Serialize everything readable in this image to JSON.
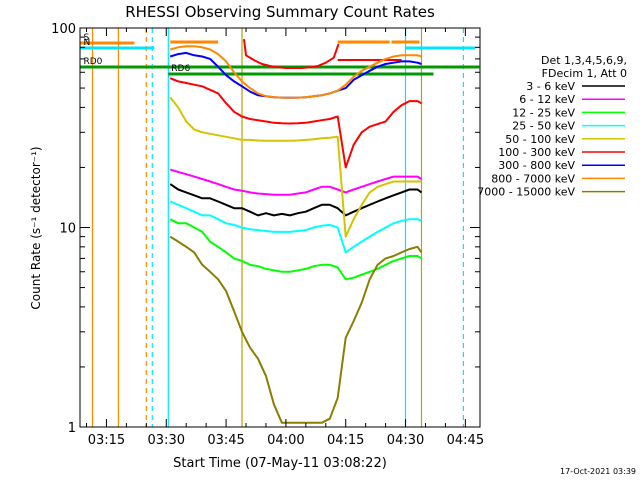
{
  "chart_data": {
    "type": "line",
    "title": "RHESSI Observing Summary Count Rates",
    "xlabel_prefix": "Start Time (",
    "xlabel_date": "07-May-11 03:08:22",
    "xlabel_suffix": ")",
    "ylabel": "Count Rate (s⁻¹ detector⁻¹)",
    "yscale": "log",
    "ylim": [
      1,
      100
    ],
    "y_ticks": [
      {
        "v": 1,
        "label": "1"
      },
      {
        "v": 10,
        "label": "10"
      },
      {
        "v": 100,
        "label": "100"
      }
    ],
    "x_ticks": [
      {
        "min": 195,
        "label": "03:15"
      },
      {
        "min": 210,
        "label": "03:30"
      },
      {
        "min": 225,
        "label": "03:45"
      },
      {
        "min": 240,
        "label": "04:00"
      },
      {
        "min": 255,
        "label": "04:15"
      },
      {
        "min": 270,
        "label": "04:30"
      },
      {
        "min": 285,
        "label": "04:45"
      }
    ],
    "xlim_min": [
      188.37,
      288.67
    ],
    "legend_header": [
      "Det 1,3,4,5,6,9,",
      "FDecim 1, Att 0"
    ],
    "series": [
      {
        "name": "3 - 6 keV",
        "color": "#000000",
        "x": [
          211,
          213,
          215,
          217,
          219,
          221,
          223,
          225,
          227,
          229,
          231,
          233,
          235,
          237,
          239,
          241,
          243,
          245,
          247,
          249,
          251,
          253,
          255,
          257,
          259,
          261,
          263,
          265,
          267,
          269,
          271,
          273,
          274
        ],
        "y": [
          16.5,
          15.5,
          15,
          14.5,
          14,
          14,
          13.5,
          13,
          12.5,
          12.5,
          12,
          11.5,
          11.8,
          11.5,
          11.7,
          11.5,
          11.8,
          12,
          12.5,
          13,
          13,
          12.5,
          11.5,
          12,
          12.5,
          13,
          13.5,
          14,
          14.5,
          15,
          15.5,
          15.5,
          15
        ]
      },
      {
        "name": "6 - 12 keV",
        "color": "#ff00ff",
        "x": [
          211,
          213,
          215,
          217,
          219,
          221,
          223,
          225,
          227,
          229,
          231,
          233,
          235,
          237,
          239,
          241,
          243,
          245,
          247,
          249,
          251,
          253,
          255,
          257,
          259,
          261,
          263,
          265,
          267,
          269,
          271,
          273,
          274
        ],
        "y": [
          19.5,
          19,
          18.5,
          18,
          17.5,
          17,
          16.5,
          16,
          15.5,
          15.3,
          15,
          14.8,
          14.7,
          14.6,
          14.6,
          14.6,
          14.8,
          15,
          15.5,
          16,
          16,
          15.5,
          15,
          15.5,
          16,
          16.5,
          17,
          17.5,
          18,
          18,
          18,
          18,
          17.5
        ]
      },
      {
        "name": "12 - 25 keV",
        "color": "#00ff00",
        "x": [
          211,
          213,
          215,
          217,
          219,
          221,
          223,
          225,
          227,
          229,
          231,
          233,
          235,
          237,
          239,
          241,
          243,
          245,
          247,
          249,
          251,
          253,
          255,
          257,
          259,
          261,
          263,
          265,
          267,
          269,
          271,
          273,
          274
        ],
        "y": [
          11,
          10.5,
          10.5,
          10,
          9.5,
          8.5,
          8,
          7.5,
          7,
          6.8,
          6.5,
          6.4,
          6.2,
          6.1,
          6,
          6,
          6.1,
          6.2,
          6.4,
          6.5,
          6.5,
          6.3,
          5.5,
          5.6,
          5.8,
          6,
          6.2,
          6.5,
          6.8,
          7,
          7.2,
          7.2,
          7
        ]
      },
      {
        "name": "25 - 50 keV",
        "color": "#00ffff",
        "x": [
          211,
          213,
          215,
          217,
          219,
          221,
          223,
          225,
          227,
          229,
          231,
          233,
          235,
          237,
          239,
          241,
          243,
          245,
          247,
          249,
          251,
          253,
          255,
          257,
          259,
          261,
          263,
          265,
          267,
          269,
          271,
          273,
          274
        ],
        "y": [
          13.5,
          13,
          12.5,
          12,
          11.5,
          11.5,
          11,
          10.5,
          10.3,
          10,
          9.8,
          9.7,
          9.6,
          9.5,
          9.5,
          9.5,
          9.6,
          9.7,
          10,
          10.2,
          10.3,
          10,
          7.5,
          8,
          8.5,
          9,
          9.5,
          10,
          10.5,
          10.8,
          11,
          11,
          10.8
        ]
      },
      {
        "name": "50 - 100 keV",
        "color": "#d4c400",
        "x": [
          211,
          213,
          215,
          217,
          219,
          221,
          223,
          225,
          227,
          229,
          231,
          233,
          235,
          237,
          239,
          241,
          243,
          245,
          247,
          249,
          251,
          253,
          255,
          257,
          259,
          261,
          263,
          265,
          267,
          269,
          271,
          273,
          274
        ],
        "y": [
          45,
          40,
          34,
          31,
          30,
          29.5,
          29,
          28.5,
          28,
          27.5,
          27.5,
          27.3,
          27.2,
          27.2,
          27.2,
          27.2,
          27.3,
          27.5,
          27.7,
          28,
          28.2,
          28.5,
          9,
          11,
          13,
          15,
          16,
          16.5,
          17,
          17,
          17,
          17,
          17
        ]
      },
      {
        "name": "100 - 300 keV",
        "color": "#ff0000",
        "x": [
          211,
          213,
          215,
          217,
          219,
          221,
          223,
          225,
          227,
          229,
          231,
          233,
          235,
          237,
          239,
          241,
          243,
          245,
          247,
          249,
          251,
          253,
          255,
          257,
          259,
          261,
          263,
          265,
          267,
          269,
          271,
          273,
          274
        ],
        "y": [
          56,
          54,
          53,
          52,
          51,
          49,
          47,
          42,
          38,
          36,
          35,
          34.5,
          34,
          33.5,
          33.3,
          33.2,
          33.3,
          33.5,
          34,
          34.5,
          35,
          36,
          20,
          26,
          30,
          32,
          33,
          34,
          38,
          41,
          43,
          43,
          42
        ]
      },
      {
        "name": "300 - 800 keV",
        "color": "#0000ff",
        "x": [
          211,
          213,
          215,
          217,
          219,
          221,
          223,
          225,
          227,
          229,
          231,
          233,
          235,
          237,
          239,
          241,
          243,
          245,
          247,
          249,
          251,
          253,
          255,
          257,
          259,
          261,
          263,
          265,
          267,
          269,
          271,
          273,
          274
        ],
        "y": [
          72,
          74,
          75,
          73,
          72,
          70,
          64,
          58,
          54,
          51,
          48,
          46,
          45.5,
          45,
          44.8,
          44.7,
          44.8,
          45,
          45.5,
          46,
          47,
          48.5,
          50,
          55,
          58,
          61,
          64,
          66,
          67,
          68,
          68,
          67,
          66
        ]
      },
      {
        "name": "800 - 7000 keV",
        "color": "#ff8800",
        "x": [
          211,
          213,
          215,
          217,
          219,
          221,
          223,
          225,
          227,
          229,
          231,
          233,
          235,
          237,
          239,
          241,
          243,
          245,
          247,
          249,
          251,
          253,
          255,
          257,
          259,
          261,
          263,
          265,
          267,
          269,
          271,
          273,
          274
        ],
        "y": [
          78,
          80,
          81,
          81,
          80,
          78,
          74,
          68,
          60,
          54,
          50,
          47,
          45.5,
          45,
          44.8,
          44.7,
          44.8,
          45,
          45.5,
          46,
          47,
          48.5,
          52,
          57,
          61,
          64,
          67,
          70,
          72,
          73,
          73,
          73,
          72
        ]
      },
      {
        "name": "7000 - 15000 keV",
        "color": "#8b7d00",
        "x": [
          211,
          213,
          215,
          217,
          219,
          221,
          223,
          225,
          227,
          229,
          231,
          233,
          235,
          237,
          239,
          241,
          243,
          245,
          247,
          249,
          251,
          253,
          255,
          257,
          259,
          261,
          263,
          265,
          267,
          269,
          271,
          273,
          274
        ],
        "y": [
          9,
          8.5,
          8,
          7.5,
          6.5,
          6,
          5.5,
          4.8,
          3.8,
          3,
          2.5,
          2.2,
          1.8,
          1.3,
          1.05,
          1.05,
          1.05,
          1.05,
          1.05,
          1.05,
          1.1,
          1.4,
          2.8,
          3.4,
          4.2,
          5.5,
          6.5,
          7,
          7.2,
          7.5,
          7.8,
          8,
          7.5
        ]
      },
      {
        "name": "",
        "color": "#ff0000",
        "x": [
          229.5,
          230,
          232,
          234,
          236,
          238,
          240,
          242,
          244,
          246,
          248,
          250,
          252,
          253.2
        ],
        "y": [
          88,
          73,
          69,
          66,
          64.5,
          63.5,
          63,
          63,
          63,
          63.5,
          64.5,
          67,
          71,
          83
        ]
      }
    ],
    "annotations": {
      "orange_bars": [
        {
          "label": "S",
          "start": 188.5,
          "end": 202
        },
        {
          "label": "",
          "start": 211,
          "end": 223
        },
        {
          "label": "",
          "start": 253,
          "end": 266
        },
        {
          "label": "",
          "start": 266.5,
          "end": 273.5
        }
      ],
      "cyan_bars": [
        {
          "label": "N",
          "start": 188.5,
          "end": 207
        },
        {
          "label": "",
          "start": 270,
          "end": 287.5
        }
      ],
      "green_bars": [
        {
          "label": "RD0",
          "start": 188.5,
          "end": 288.5
        },
        {
          "label": "RD6",
          "start": 210.5,
          "end": 277
        }
      ],
      "red_bars": [
        {
          "label": "",
          "start": 253,
          "end": 269
        }
      ],
      "orange_lines": [
        191.5,
        198
      ],
      "orange_dashed_lines": [
        205
      ],
      "cyan_lines": [
        210.5,
        270
      ],
      "cyan_dashed_lines": [
        206.5,
        284.5
      ],
      "olive_lines": [
        229,
        274
      ]
    },
    "timestamp": "17-Oct-2021 03:39"
  }
}
